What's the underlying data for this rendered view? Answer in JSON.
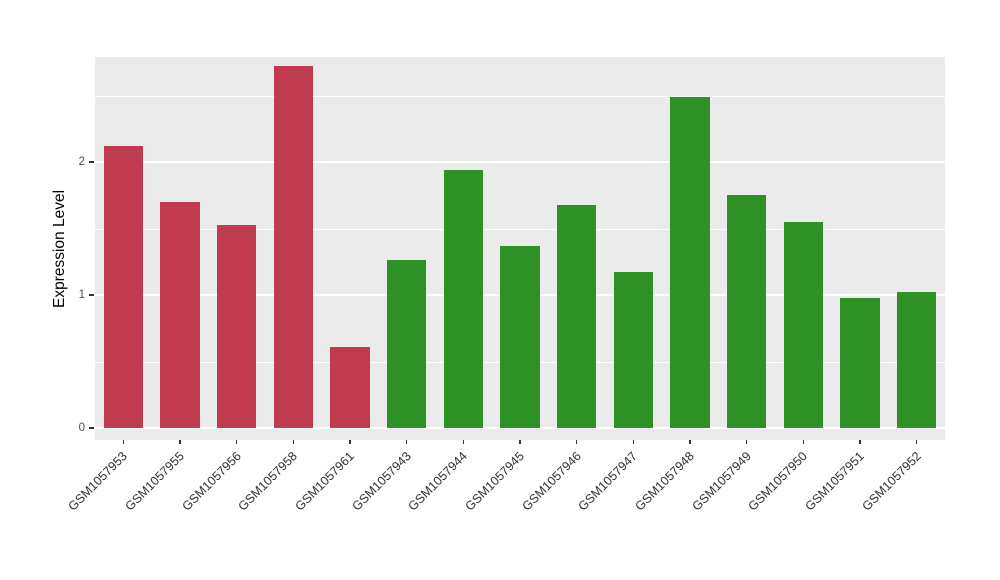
{
  "chart_data": {
    "type": "bar",
    "title": "",
    "xlabel": "",
    "ylabel": "Expression Level",
    "ylim": [
      0,
      2.8
    ],
    "yticks": [
      0,
      1,
      2
    ],
    "yminor": [
      0.5,
      1.5,
      2.5
    ],
    "grid": true,
    "legend": "none",
    "panel_background": "#EBEBEB",
    "gridline_color": "#ffffff",
    "categories": [
      "GSM1057953",
      "GSM1057955",
      "GSM1057956",
      "GSM1057958",
      "GSM1057961",
      "GSM1057943",
      "GSM1057944",
      "GSM1057945",
      "GSM1057946",
      "GSM1057947",
      "GSM1057948",
      "GSM1057949",
      "GSM1057950",
      "GSM1057951",
      "GSM1057952"
    ],
    "values": [
      2.12,
      1.7,
      1.53,
      2.72,
      0.61,
      1.26,
      1.94,
      1.37,
      1.68,
      1.17,
      2.49,
      1.75,
      1.55,
      0.98,
      1.02
    ],
    "bar_colors": [
      "#C13B50",
      "#C13B50",
      "#C13B50",
      "#C13B50",
      "#C13B50",
      "#2E9125",
      "#2E9125",
      "#2E9125",
      "#2E9125",
      "#2E9125",
      "#2E9125",
      "#2E9125",
      "#2E9125",
      "#2E9125",
      "#2E9125"
    ],
    "group_colors": {
      "red_group": "#C13B50",
      "green_group": "#2E9125"
    }
  }
}
